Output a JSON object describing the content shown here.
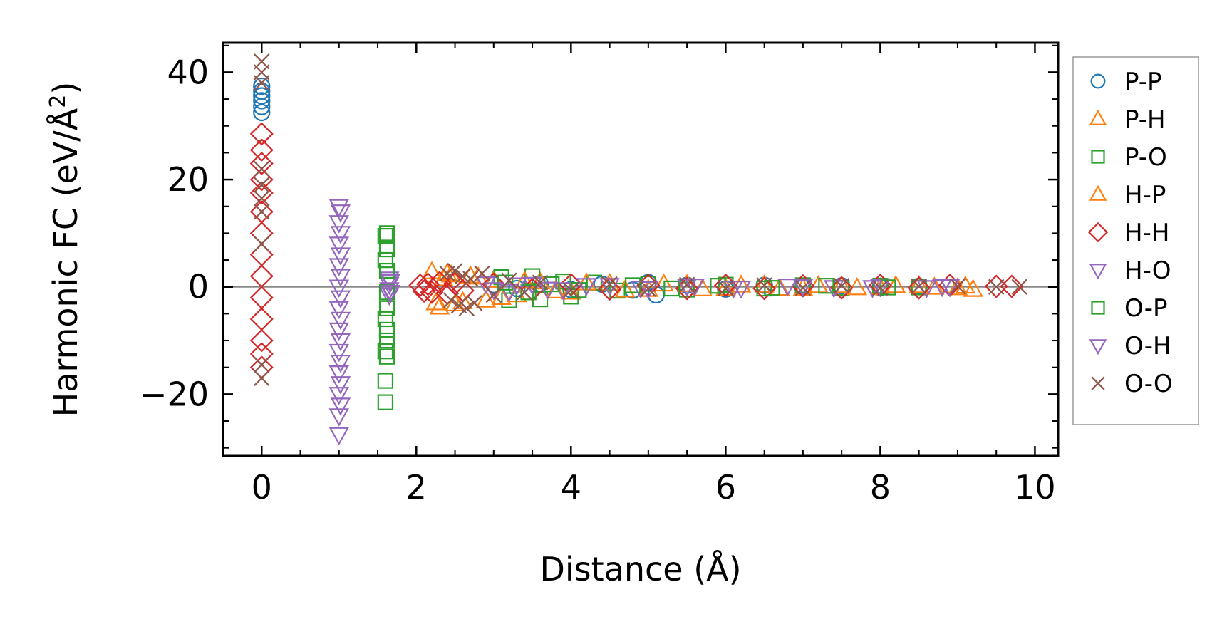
{
  "chart_data": {
    "type": "scatter",
    "xlabel": "Distance (Å)",
    "ylabel_main": "Harmonic FC (eV/Å",
    "ylabel_sup": "2",
    "ylabel_close": ")",
    "xlim": [
      -0.5,
      10.3
    ],
    "ylim": [
      -31.5,
      45.5
    ],
    "x_ticks": [
      0,
      2,
      4,
      6,
      8,
      10
    ],
    "x_tick_labels": [
      "0",
      "2",
      "4",
      "6",
      "8",
      "10"
    ],
    "x_minor_step": 0.5,
    "y_ticks": [
      -20,
      0,
      20,
      40
    ],
    "y_tick_labels": [
      "−20",
      "0",
      "20",
      "40"
    ],
    "y_minor_step": 5,
    "zero_line": true,
    "grid": false,
    "legend_position": "outside-right",
    "series": [
      {
        "name": "P-P",
        "marker": "circle",
        "color": "#1f77b4",
        "points": [
          [
            0,
            32.5
          ],
          [
            0,
            33.6
          ],
          [
            0,
            34.7
          ],
          [
            0,
            35.6
          ],
          [
            0,
            36.5
          ],
          [
            0,
            37.4
          ],
          [
            3.0,
            0.4
          ],
          [
            3.3,
            -0.3
          ],
          [
            3.6,
            0.6
          ],
          [
            4.0,
            -0.5
          ],
          [
            4.4,
            0.5
          ],
          [
            4.8,
            -0.6
          ],
          [
            5.0,
            0.8
          ],
          [
            5.1,
            -1.5
          ],
          [
            5.5,
            0.3
          ],
          [
            6.0,
            -0.4
          ],
          [
            6.5,
            0.3
          ],
          [
            7.0,
            -0.2
          ],
          [
            7.5,
            0.2
          ],
          [
            8.0,
            -0.1
          ],
          [
            8.5,
            0.1
          ]
        ]
      },
      {
        "name": "P-H",
        "marker": "triangle-up",
        "color": "#ff7f0e",
        "points": [
          [
            2.2,
            2.8
          ],
          [
            2.3,
            -3.8
          ],
          [
            2.4,
            2.5
          ],
          [
            2.5,
            -3.2
          ],
          [
            2.35,
            1.5
          ],
          [
            2.7,
            2.0
          ],
          [
            2.9,
            -2.5
          ],
          [
            3.0,
            1.2
          ],
          [
            3.3,
            -1.5
          ],
          [
            3.6,
            0.9
          ],
          [
            4.0,
            -1.0
          ],
          [
            4.5,
            0.6
          ],
          [
            5.0,
            -0.5
          ],
          [
            5.5,
            0.4
          ],
          [
            6.0,
            -0.3
          ],
          [
            6.5,
            0.3
          ],
          [
            7.0,
            -0.3
          ],
          [
            7.5,
            0.2
          ],
          [
            8.0,
            -0.2
          ],
          [
            8.5,
            0.2
          ],
          [
            9.0,
            -0.2
          ],
          [
            9.2,
            -0.5
          ]
        ]
      },
      {
        "name": "P-O",
        "marker": "square",
        "color": "#2ca02c",
        "points": [
          [
            1.6,
            9.5
          ],
          [
            1.6,
            5.0
          ],
          [
            1.6,
            -6.0
          ],
          [
            1.6,
            -12.0
          ],
          [
            1.6,
            -17.5
          ],
          [
            1.6,
            -21.5
          ],
          [
            3.1,
            1.8
          ],
          [
            3.2,
            -2.5
          ],
          [
            3.5,
            2.0
          ],
          [
            3.6,
            -2.3
          ],
          [
            3.9,
            1.0
          ],
          [
            4.0,
            -1.8
          ],
          [
            4.3,
            0.8
          ],
          [
            4.6,
            -0.7
          ],
          [
            5.0,
            0.6
          ],
          [
            5.5,
            -0.5
          ],
          [
            6.0,
            0.4
          ],
          [
            6.5,
            -0.3
          ],
          [
            7.0,
            0.3
          ],
          [
            7.5,
            -0.2
          ],
          [
            8.0,
            0.2
          ],
          [
            8.5,
            -0.1
          ]
        ]
      },
      {
        "name": "H-P",
        "marker": "triangle-up",
        "color": "#ff7f0e",
        "points": [
          [
            2.25,
            -3.0
          ],
          [
            2.45,
            2.2
          ],
          [
            2.6,
            -2.8
          ],
          [
            2.8,
            1.8
          ],
          [
            3.1,
            -2.0
          ],
          [
            3.4,
            1.0
          ],
          [
            3.8,
            -0.8
          ],
          [
            4.2,
            0.7
          ],
          [
            4.7,
            -0.6
          ],
          [
            5.2,
            0.5
          ],
          [
            5.7,
            -0.4
          ],
          [
            6.2,
            0.3
          ],
          [
            6.7,
            -0.3
          ],
          [
            7.2,
            0.2
          ],
          [
            7.7,
            -0.2
          ],
          [
            8.2,
            0.2
          ],
          [
            8.7,
            -0.1
          ],
          [
            9.1,
            0.1
          ]
        ]
      },
      {
        "name": "H-H",
        "marker": "diamond",
        "color": "#d62728",
        "points": [
          [
            0,
            28.5
          ],
          [
            0,
            25.5
          ],
          [
            0,
            23.0
          ],
          [
            0,
            20.0
          ],
          [
            0,
            17.5
          ],
          [
            0,
            14.0
          ],
          [
            0,
            10.0
          ],
          [
            0,
            6.0
          ],
          [
            0,
            2.0
          ],
          [
            0,
            -2.0
          ],
          [
            0,
            -6.0
          ],
          [
            0,
            -10.0
          ],
          [
            0,
            -12.5
          ],
          [
            0,
            -15.0
          ],
          [
            2.05,
            0.3
          ],
          [
            2.1,
            -0.8
          ],
          [
            2.15,
            0.5
          ],
          [
            2.2,
            -1.0
          ],
          [
            2.3,
            0.8
          ],
          [
            2.4,
            -1.2
          ],
          [
            2.5,
            0.6
          ],
          [
            2.6,
            -0.7
          ],
          [
            3.0,
            0.5
          ],
          [
            3.5,
            -0.5
          ],
          [
            4.0,
            0.4
          ],
          [
            4.5,
            -0.4
          ],
          [
            5.0,
            0.3
          ],
          [
            5.5,
            -0.3
          ],
          [
            6.0,
            0.3
          ],
          [
            6.5,
            -0.3
          ],
          [
            7.0,
            0.2
          ],
          [
            7.5,
            -0.2
          ],
          [
            8.0,
            0.3
          ],
          [
            8.5,
            -0.2
          ],
          [
            8.9,
            0.3
          ],
          [
            9.5,
            0.1
          ],
          [
            9.7,
            0.1
          ]
        ]
      },
      {
        "name": "H-O",
        "marker": "triangle-down",
        "color": "#9467bd",
        "points": [
          [
            1.0,
            15.0
          ],
          [
            1.0,
            12.0
          ],
          [
            1.0,
            8.0
          ],
          [
            1.0,
            4.0
          ],
          [
            1.0,
            0.0
          ],
          [
            1.0,
            -4.0
          ],
          [
            1.0,
            -8.0
          ],
          [
            1.0,
            -12.0
          ],
          [
            1.0,
            -16.0
          ],
          [
            1.0,
            -20.0
          ],
          [
            1.0,
            -24.0
          ],
          [
            1.0,
            -27.5
          ],
          [
            1.65,
            1.5
          ],
          [
            1.65,
            0.5
          ],
          [
            1.65,
            -0.5
          ],
          [
            1.65,
            -1.5
          ],
          [
            2.9,
            0.6
          ],
          [
            3.2,
            -0.8
          ],
          [
            3.5,
            0.5
          ],
          [
            3.9,
            -0.5
          ],
          [
            4.5,
            0.3
          ],
          [
            5.0,
            -0.3
          ],
          [
            5.6,
            0.2
          ],
          [
            6.2,
            -0.2
          ],
          [
            6.8,
            0.2
          ],
          [
            7.4,
            -0.1
          ],
          [
            8.0,
            0.1
          ],
          [
            8.6,
            -0.1
          ],
          [
            8.9,
            0.1
          ]
        ]
      },
      {
        "name": "O-P",
        "marker": "square",
        "color": "#2ca02c",
        "points": [
          [
            1.62,
            10.0
          ],
          [
            1.62,
            7.0
          ],
          [
            1.62,
            3.0
          ],
          [
            1.62,
            -1.0
          ],
          [
            1.62,
            -4.0
          ],
          [
            1.62,
            -8.0
          ],
          [
            1.62,
            -10.0
          ],
          [
            1.62,
            -13.0
          ],
          [
            3.15,
            0.8
          ],
          [
            3.45,
            -1.0
          ],
          [
            3.75,
            0.5
          ],
          [
            4.1,
            -0.6
          ],
          [
            4.8,
            0.3
          ],
          [
            5.3,
            -0.3
          ],
          [
            5.9,
            0.2
          ],
          [
            6.6,
            -0.2
          ],
          [
            7.3,
            0.2
          ],
          [
            8.1,
            -0.1
          ]
        ]
      },
      {
        "name": "O-H",
        "marker": "triangle-down",
        "color": "#9467bd",
        "points": [
          [
            1.02,
            14.0
          ],
          [
            1.02,
            10.0
          ],
          [
            1.02,
            6.0
          ],
          [
            1.02,
            2.0
          ],
          [
            1.02,
            -2.0
          ],
          [
            1.02,
            -6.0
          ],
          [
            1.02,
            -10.0
          ],
          [
            1.02,
            -14.0
          ],
          [
            1.02,
            -18.0
          ],
          [
            1.02,
            -22.0
          ],
          [
            1.66,
            1.0
          ],
          [
            1.66,
            -1.0
          ],
          [
            3.0,
            -0.5
          ],
          [
            3.3,
            0.4
          ],
          [
            3.7,
            -0.4
          ],
          [
            4.2,
            0.3
          ],
          [
            4.9,
            -0.2
          ],
          [
            5.5,
            0.2
          ],
          [
            6.1,
            -0.2
          ],
          [
            7.0,
            0.1
          ],
          [
            7.9,
            -0.1
          ],
          [
            8.8,
            0.1
          ]
        ]
      },
      {
        "name": "O-O",
        "marker": "x",
        "color": "#8c564b",
        "points": [
          [
            0,
            42.0
          ],
          [
            0,
            40.0
          ],
          [
            0,
            38.0
          ],
          [
            0,
            22.0
          ],
          [
            0,
            19.0
          ],
          [
            0,
            16.5
          ],
          [
            0,
            14.0
          ],
          [
            0,
            8.0
          ],
          [
            0,
            -14.5
          ],
          [
            0,
            -17.0
          ],
          [
            2.4,
            2.5
          ],
          [
            2.45,
            -2.5
          ],
          [
            2.5,
            3.0
          ],
          [
            2.55,
            -3.5
          ],
          [
            2.6,
            2.0
          ],
          [
            2.65,
            -4.0
          ],
          [
            2.7,
            1.5
          ],
          [
            2.75,
            -3.0
          ],
          [
            2.85,
            2.5
          ],
          [
            3.0,
            -1.5
          ],
          [
            3.2,
            1.2
          ],
          [
            3.4,
            -1.0
          ],
          [
            3.6,
            0.8
          ],
          [
            4.0,
            -0.6
          ],
          [
            4.5,
            0.5
          ],
          [
            5.0,
            -0.4
          ],
          [
            5.5,
            0.4
          ],
          [
            6.0,
            -0.3
          ],
          [
            6.5,
            0.3
          ],
          [
            7.0,
            -0.2
          ],
          [
            7.5,
            0.2
          ],
          [
            8.0,
            -0.2
          ],
          [
            8.5,
            0.1
          ],
          [
            9.0,
            0.1
          ],
          [
            9.5,
            0.0
          ],
          [
            9.8,
            0.0
          ]
        ]
      }
    ]
  }
}
